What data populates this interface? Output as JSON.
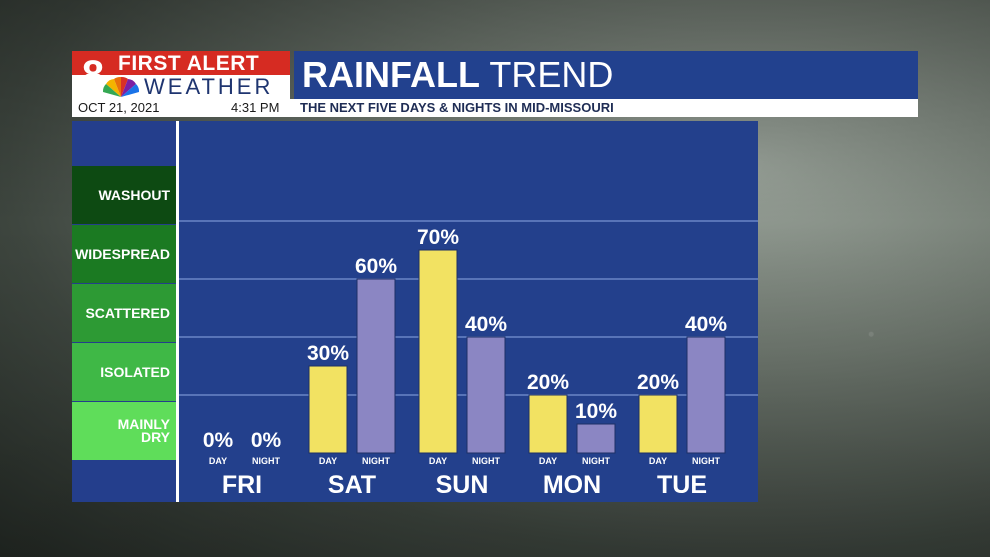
{
  "header": {
    "logo_number": "8",
    "logo_line1": "FIRST ALERT",
    "logo_line2": "WEATHER",
    "title_bold": "RAINFALL",
    "title_light": "TREND",
    "date": "OCT 21, 2021",
    "time": "4:31 PM",
    "subtitle": "THE NEXT FIVE DAYS & NIGHTS IN MID-MISSOURI"
  },
  "categories": [
    {
      "label": "WASHOUT",
      "color": "#0d4a12"
    },
    {
      "label": "WIDESPREAD",
      "color": "#1b7a22"
    },
    {
      "label": "SCATTERED",
      "color": "#2d9a34"
    },
    {
      "label": "ISOLATED",
      "color": "#3fb846"
    },
    {
      "label": "MAINLY DRY",
      "color": "#5fdd5a"
    }
  ],
  "colors": {
    "day_bar": "#f2e262",
    "night_bar": "#8b86c3",
    "plot_bg": "#23408c",
    "title_bar": "#22418e",
    "logo_red": "#d62b22"
  },
  "chart_data": {
    "type": "bar",
    "title": "RAINFALL TREND",
    "subtitle": "THE NEXT FIVE DAYS & NIGHTS IN MID-MISSOURI",
    "categories": [
      "FRI",
      "SAT",
      "SUN",
      "MON",
      "TUE"
    ],
    "series": [
      {
        "name": "DAY",
        "values": [
          0,
          30,
          70,
          20,
          20
        ]
      },
      {
        "name": "NIGHT",
        "values": [
          0,
          60,
          40,
          10,
          40
        ]
      }
    ],
    "value_labels": {
      "DAY": [
        "0%",
        "30%",
        "70%",
        "20%",
        "20%"
      ],
      "NIGHT": [
        "0%",
        "60%",
        "40%",
        "10%",
        "40%"
      ]
    },
    "ylim": [
      0,
      100
    ],
    "grid": true
  }
}
